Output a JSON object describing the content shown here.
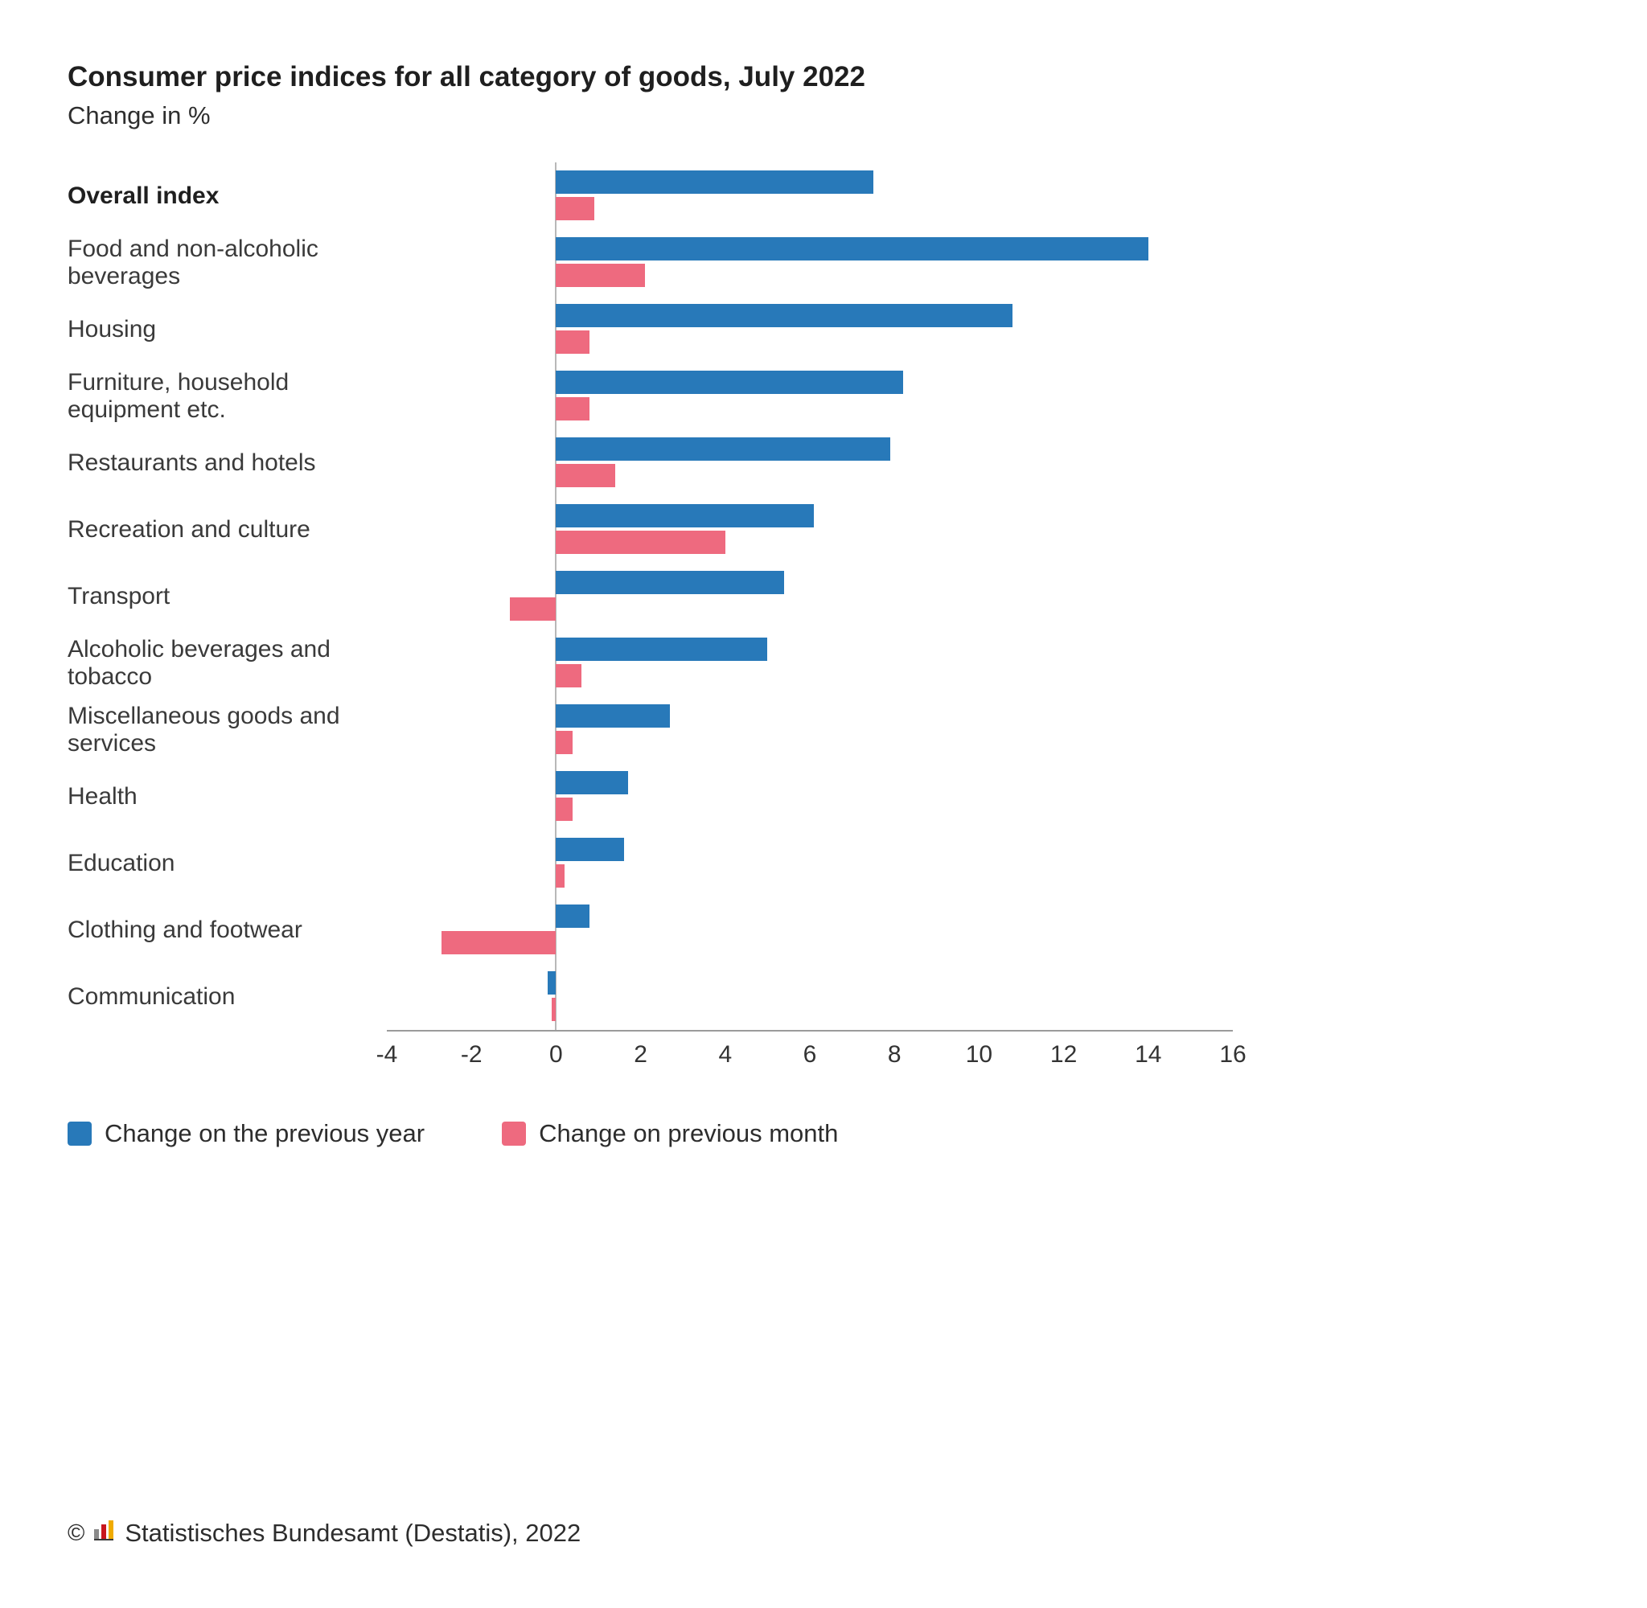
{
  "header": {
    "title": "Consumer price indices for all category of goods, July 2022",
    "subtitle": "Change in %"
  },
  "legend": [
    {
      "label": "Change on the previous year",
      "color": "#2879b9"
    },
    {
      "label": "Change on previous month",
      "color": "#ee6a7f"
    }
  ],
  "footer": {
    "copyright": "©",
    "text": "Statistisches Bundesamt (Destatis), 2022"
  },
  "chart_data": {
    "type": "bar",
    "orientation": "horizontal",
    "title": "Consumer price indices for all category of goods, July 2022",
    "subtitle": "Change in %",
    "xlabel": "Change in %",
    "xlim": [
      -4,
      16
    ],
    "xticks": [
      -4,
      -2,
      0,
      2,
      4,
      6,
      8,
      10,
      12,
      14,
      16
    ],
    "grid": false,
    "legend_position": "bottom",
    "bold_categories": [
      "Overall index"
    ],
    "categories": [
      "Overall index",
      "Food and non-alcoholic beverages",
      "Housing",
      "Furniture, household equipment etc.",
      "Restaurants and hotels",
      "Recreation and culture",
      "Transport",
      "Alcoholic beverages and tobacco",
      "Miscellaneous goods and services",
      "Health",
      "Education",
      "Clothing and footwear",
      "Communication"
    ],
    "series": [
      {
        "name": "Change on the previous year",
        "color": "#2879b9",
        "values": [
          7.5,
          14.0,
          10.8,
          8.2,
          7.9,
          6.1,
          5.4,
          5.0,
          2.7,
          1.7,
          1.6,
          0.8,
          -0.2
        ]
      },
      {
        "name": "Change on previous month",
        "color": "#ee6a7f",
        "values": [
          0.9,
          2.1,
          0.8,
          0.8,
          1.4,
          4.0,
          -1.1,
          0.6,
          0.4,
          0.4,
          0.2,
          -2.7,
          -0.1
        ]
      }
    ]
  }
}
